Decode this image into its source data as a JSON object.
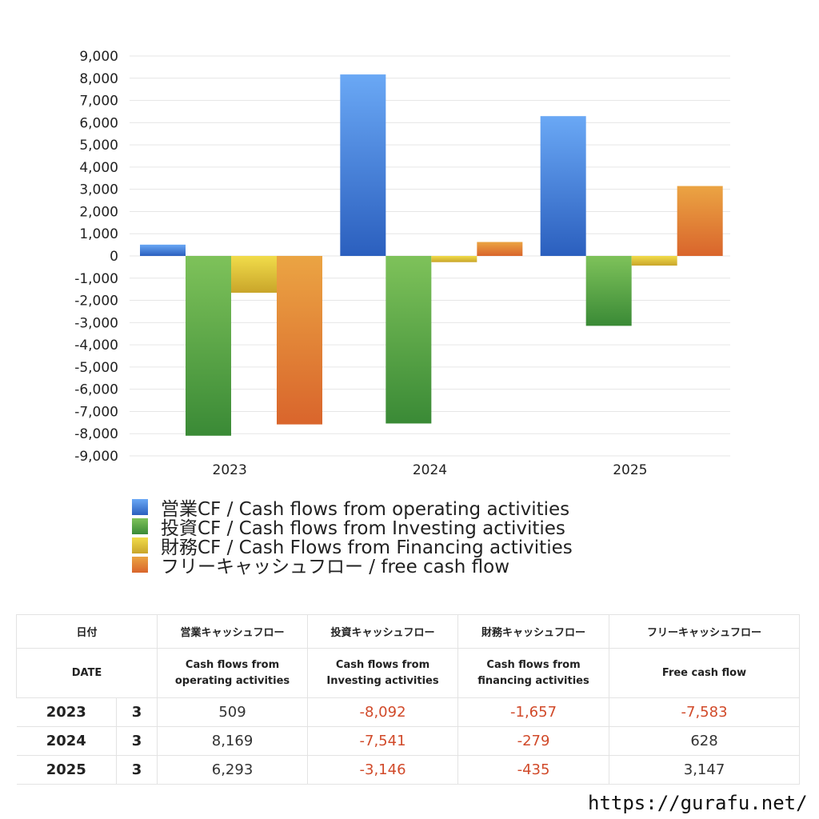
{
  "chart_data": {
    "type": "bar",
    "categories": [
      "2023",
      "2024",
      "2025"
    ],
    "series": [
      {
        "name": "営業CF / Cash flows from operating activities",
        "values": [
          509,
          8169,
          6293
        ],
        "color_top": "#6aa8f5",
        "color_bottom": "#2b5fbe"
      },
      {
        "name": "投資CF / Cash flows from Investing activities",
        "values": [
          -8092,
          -7541,
          -3146
        ],
        "color_top": "#7ec25a",
        "color_bottom": "#3a8a36"
      },
      {
        "name": "財務CF / Cash Flows from Financing activities",
        "values": [
          -1657,
          -279,
          -435
        ],
        "color_top": "#f1dc4a",
        "color_bottom": "#c9a52a"
      },
      {
        "name": "フリーキャッシュフロー / free cash flow",
        "values": [
          -7583,
          628,
          3147
        ],
        "color_top": "#eba443",
        "color_bottom": "#d9652c"
      }
    ],
    "ylim": [
      -9000,
      9000
    ],
    "yticks": [
      "9,000",
      "8,000",
      "7,000",
      "6,000",
      "5,000",
      "4,000",
      "3,000",
      "2,000",
      "1,000",
      "0",
      "-1,000",
      "-2,000",
      "-3,000",
      "-4,000",
      "-5,000",
      "-6,000",
      "-7,000",
      "-8,000",
      "-9,000"
    ],
    "ytick_values": [
      9000,
      8000,
      7000,
      6000,
      5000,
      4000,
      3000,
      2000,
      1000,
      0,
      -1000,
      -2000,
      -3000,
      -4000,
      -5000,
      -6000,
      -7000,
      -8000,
      -9000
    ],
    "grid": true,
    "legend": "bottom"
  },
  "table": {
    "headers_jp": [
      "日付",
      "営業キャッシュフロー",
      "投資キャッシュフロー",
      "財務キャッシュフロー",
      "フリーキャッシュフロー"
    ],
    "headers_en_date": "DATE",
    "headers_en": [
      {
        "l1": "Cash flows from",
        "l2": "operating activities"
      },
      {
        "l1": "Cash flows from",
        "l2": "Investing activities"
      },
      {
        "l1": "Cash flows from",
        "l2": "financing activities"
      },
      {
        "l1": "",
        "l2": "Free cash flow"
      }
    ],
    "rows": [
      {
        "year": "2023",
        "month": "3",
        "cells": [
          "509",
          "-8,092",
          "-1,657",
          "-7,583"
        ]
      },
      {
        "year": "2024",
        "month": "3",
        "cells": [
          "8,169",
          "-7,541",
          "-279",
          "628"
        ]
      },
      {
        "year": "2025",
        "month": "3",
        "cells": [
          "6,293",
          "-3,146",
          "-435",
          "3,147"
        ]
      }
    ]
  },
  "footer": {
    "url": "https://gurafu.net/"
  }
}
